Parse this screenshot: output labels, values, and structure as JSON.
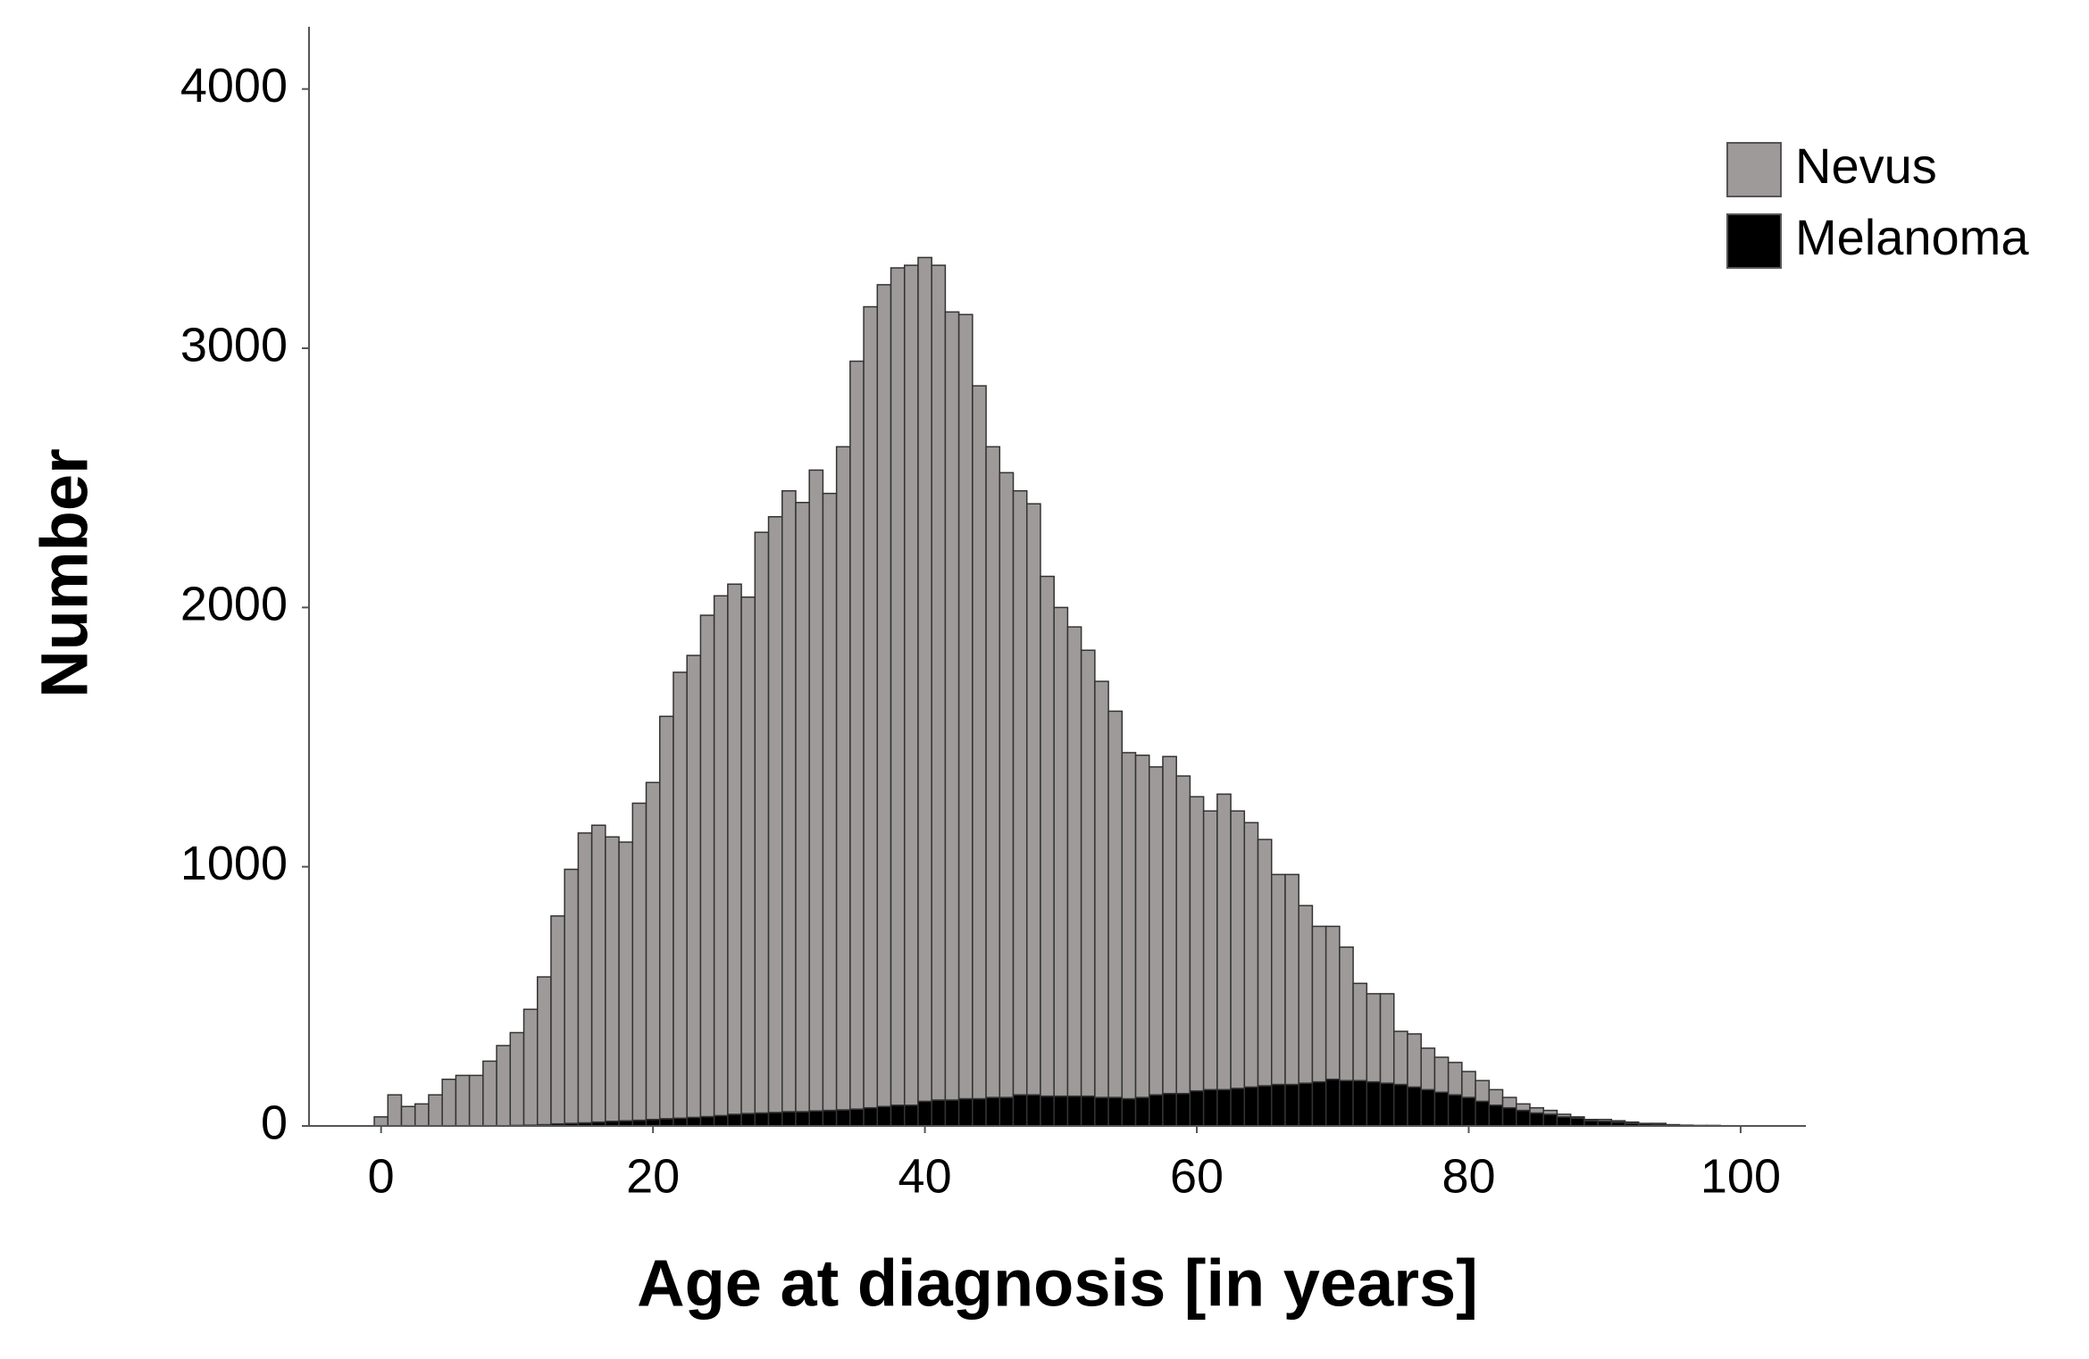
{
  "chart_data": {
    "type": "histogram",
    "xlabel": "Age at diagnosis [in years]",
    "ylabel": "Number",
    "bins": [
      -0.5,
      0.5,
      1.5,
      2.5,
      3.5,
      4.5,
      5.5,
      6.5,
      7.5,
      8.5,
      9.5,
      10.5,
      11.5,
      12.5,
      13.5,
      14.5,
      15.5,
      16.5,
      17.5,
      18.5,
      19.5,
      20.5,
      21.5,
      22.5,
      23.5,
      24.5,
      25.5,
      26.5,
      27.5,
      28.5,
      29.5,
      30.5,
      31.5,
      32.5,
      33.5,
      34.5,
      35.5,
      36.5,
      37.5,
      38.5,
      39.5,
      40.5,
      41.5,
      42.5,
      43.5,
      44.5,
      45.5,
      46.5,
      47.5,
      48.5,
      49.5,
      50.5,
      51.5,
      52.5,
      53.5,
      54.5,
      55.5,
      56.5,
      57.5,
      58.5,
      59.5,
      60.5,
      61.5,
      62.5,
      63.5,
      64.5,
      65.5,
      66.5,
      67.5,
      68.5,
      69.5,
      70.5,
      71.5,
      72.5,
      73.5,
      74.5,
      75.5,
      76.5,
      77.5,
      78.5,
      79.5,
      80.5,
      81.5,
      82.5,
      83.5,
      84.5,
      85.5,
      86.5,
      87.5,
      88.5,
      89.5,
      90.5,
      91.5,
      92.5,
      93.5,
      94.5,
      95.5,
      96.5,
      97.5,
      98.5,
      99.5
    ],
    "series": [
      {
        "name": "Nevus",
        "color": "#9e9a9a",
        "values": [
          35,
          120,
          75,
          85,
          120,
          180,
          195,
          195,
          250,
          310,
          358,
          447,
          570,
          802,
          980,
          1118,
          1145,
          1097,
          1075,
          1223,
          1300,
          1552,
          1720,
          1782,
          1934,
          2005,
          2045,
          1992,
          2240,
          2298,
          2395,
          2350,
          2472,
          2380,
          2558,
          2885,
          3090,
          3170,
          3230,
          3240,
          3255,
          3220,
          3040,
          3025,
          2750,
          2510,
          2410,
          2330,
          2280,
          2005,
          1885,
          1810,
          1720,
          1605,
          1490,
          1335,
          1320,
          1265,
          1300,
          1225,
          1135,
          1075,
          1140,
          1070,
          1020,
          950,
          810,
          810,
          685,
          600,
          590,
          515,
          375,
          340,
          345,
          205,
          205,
          160,
          135,
          125,
          100,
          80,
          60,
          40,
          25,
          20,
          15,
          10,
          5,
          5,
          7,
          5,
          5,
          2,
          3,
          1,
          1,
          1,
          1,
          1
        ]
      },
      {
        "name": "Melanoma",
        "color": "#000000",
        "values": [
          0,
          0,
          0,
          0,
          0,
          0,
          0,
          0,
          0,
          0,
          2,
          3,
          5,
          8,
          10,
          12,
          15,
          18,
          20,
          22,
          25,
          28,
          30,
          33,
          36,
          40,
          45,
          48,
          50,
          52,
          55,
          55,
          58,
          60,
          62,
          65,
          70,
          75,
          80,
          80,
          95,
          100,
          100,
          105,
          105,
          110,
          110,
          120,
          120,
          115,
          115,
          115,
          115,
          110,
          110,
          105,
          110,
          120,
          125,
          125,
          135,
          140,
          140,
          145,
          150,
          155,
          160,
          160,
          165,
          170,
          180,
          175,
          175,
          170,
          165,
          160,
          150,
          140,
          130,
          120,
          110,
          95,
          80,
          70,
          60,
          50,
          45,
          35,
          30,
          20,
          18,
          15,
          10,
          8,
          7,
          4,
          2,
          1,
          1,
          0
        ]
      }
    ],
    "xlim": [
      -5.3,
      104.8
    ],
    "xticks": [
      0,
      20,
      40,
      60,
      80,
      100
    ],
    "ylim": [
      0,
      4240
    ],
    "yticks": [
      0,
      1000,
      2000,
      3000,
      4000
    ],
    "stacked": true,
    "legend": "upper right"
  }
}
